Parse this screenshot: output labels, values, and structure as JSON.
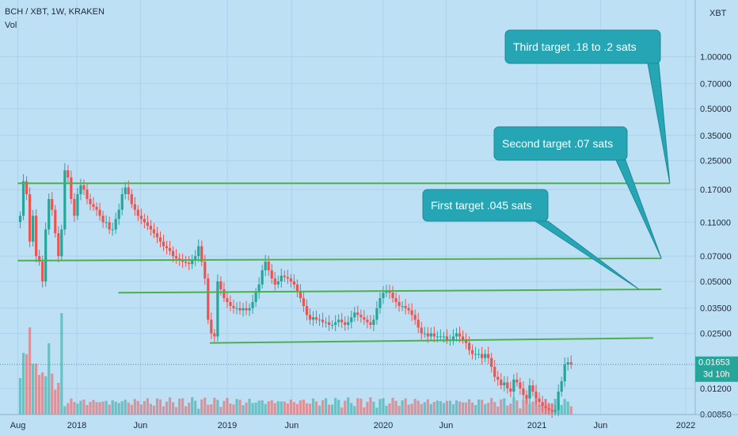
{
  "header": {
    "symbol_line": "BCH / XBT, 1W, KRAKEN",
    "volume_label": "Vol",
    "currency": "XBT"
  },
  "price_tag": {
    "price": "0.01653",
    "countdown": "3d 10h"
  },
  "colors": {
    "background": "#bee0f5",
    "up": "#26a69a",
    "down": "#ef5350",
    "trendline": "#4caf50",
    "callout_fill": "#26a6b5",
    "grid": "#a9d2ec"
  },
  "chart_data": {
    "type": "candlestick",
    "interval": "1W",
    "y_scale": "log",
    "y_ticks": [
      1.0,
      0.7,
      0.5,
      0.35,
      0.25,
      0.17,
      0.11,
      0.07,
      0.05,
      0.035,
      0.025,
      0.012,
      0.0085
    ],
    "y_tick_labels": [
      "1.00000",
      "0.70000",
      "0.50000",
      "0.35000",
      "0.25000",
      "0.17000",
      "0.11000",
      "0.07000",
      "0.05000",
      "0.03500",
      "0.02500",
      "0.01200",
      "0.00850"
    ],
    "x_ticks": [
      "2017-08",
      "2018-01",
      "2018-06",
      "2019-01",
      "2019-06",
      "2020-01",
      "2020-06",
      "2021-01",
      "2021-06",
      "2022-01"
    ],
    "x_tick_labels": [
      "Aug",
      "2018",
      "Jun",
      "2019",
      "Jun",
      "2020",
      "Jun",
      "2021",
      "Jun",
      "2022"
    ],
    "x_range": [
      "2017-07-31",
      "2022-02-07"
    ],
    "candles_close": [
      0.12,
      0.19,
      0.16,
      0.085,
      0.12,
      0.07,
      0.065,
      0.05,
      0.1,
      0.15,
      0.13,
      0.095,
      0.07,
      0.1,
      0.22,
      0.2,
      0.15,
      0.12,
      0.16,
      0.18,
      0.17,
      0.15,
      0.14,
      0.135,
      0.13,
      0.12,
      0.11,
      0.11,
      0.1,
      0.1,
      0.115,
      0.13,
      0.16,
      0.175,
      0.16,
      0.14,
      0.13,
      0.12,
      0.115,
      0.11,
      0.105,
      0.1,
      0.095,
      0.09,
      0.085,
      0.08,
      0.078,
      0.075,
      0.07,
      0.068,
      0.066,
      0.065,
      0.064,
      0.063,
      0.066,
      0.07,
      0.08,
      0.065,
      0.052,
      0.03,
      0.025,
      0.024,
      0.05,
      0.045,
      0.04,
      0.038,
      0.036,
      0.035,
      0.035,
      0.034,
      0.035,
      0.034,
      0.035,
      0.038,
      0.043,
      0.048,
      0.058,
      0.065,
      0.058,
      0.052,
      0.048,
      0.05,
      0.054,
      0.053,
      0.052,
      0.05,
      0.048,
      0.044,
      0.04,
      0.036,
      0.032,
      0.03,
      0.031,
      0.03,
      0.03,
      0.029,
      0.029,
      0.028,
      0.028,
      0.029,
      0.03,
      0.029,
      0.028,
      0.029,
      0.031,
      0.033,
      0.032,
      0.031,
      0.03,
      0.029,
      0.028,
      0.03,
      0.035,
      0.04,
      0.043,
      0.044,
      0.043,
      0.04,
      0.038,
      0.036,
      0.036,
      0.035,
      0.034,
      0.032,
      0.03,
      0.027,
      0.025,
      0.025,
      0.024,
      0.025,
      0.024,
      0.024,
      0.024,
      0.024,
      0.023,
      0.023,
      0.024,
      0.025,
      0.024,
      0.023,
      0.022,
      0.02,
      0.019,
      0.019,
      0.019,
      0.018,
      0.019,
      0.018,
      0.016,
      0.014,
      0.0135,
      0.0125,
      0.013,
      0.012,
      0.0115,
      0.0135,
      0.013,
      0.012,
      0.011,
      0.0105,
      0.0125,
      0.0115,
      0.0105,
      0.01,
      0.0095,
      0.0092,
      0.009,
      0.0088,
      0.009,
      0.0115,
      0.0132,
      0.0165,
      0.017,
      0.01653
    ],
    "series": [
      {
        "name": "",
        "type": "price",
        "points": "candles_close"
      },
      {
        "name": "Vol",
        "type": "volume"
      }
    ],
    "trendlines": [
      {
        "from": [
          "2017-07-31",
          0.185
        ],
        "to": [
          "2021-11-22",
          0.185
        ]
      },
      {
        "from": [
          "2017-07-31",
          0.066
        ],
        "to": [
          "2021-11-01",
          0.068
        ]
      },
      {
        "from": [
          "2018-04-09",
          0.043
        ],
        "to": [
          "2021-11-01",
          0.045
        ]
      },
      {
        "from": [
          "2018-11-19",
          0.022
        ],
        "to": [
          "2021-10-11",
          0.0235
        ]
      }
    ],
    "annotations": [
      {
        "text": "Third target  .18 to .2 sats",
        "pointer_to": [
          "2021-11-22",
          0.185
        ]
      },
      {
        "text": "Second target .07 sats",
        "pointer_to": [
          "2021-11-01",
          0.068
        ]
      },
      {
        "text": "First target .045 sats",
        "pointer_to": [
          "2021-09-06",
          0.045
        ]
      }
    ],
    "last_price": 0.01653,
    "grid": true,
    "legend": "top-left"
  }
}
